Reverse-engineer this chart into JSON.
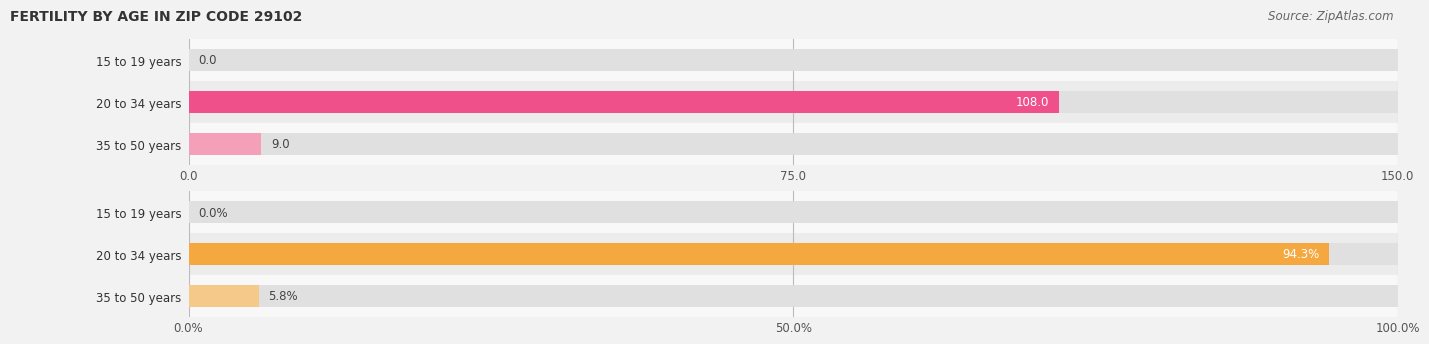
{
  "title": "FERTILITY BY AGE IN ZIP CODE 29102",
  "source": "Source: ZipAtlas.com",
  "chart1": {
    "categories": [
      "15 to 19 years",
      "20 to 34 years",
      "35 to 50 years"
    ],
    "values": [
      0.0,
      108.0,
      9.0
    ],
    "xlim": [
      0,
      150
    ],
    "xticks": [
      0.0,
      75.0,
      150.0
    ],
    "xtick_labels": [
      "0.0",
      "75.0",
      "150.0"
    ],
    "bar_colors": [
      "#f4a0b8",
      "#f0508a",
      "#f4a0b8"
    ],
    "label_colors": [
      "#555555",
      "#ffffff",
      "#555555"
    ],
    "bg_color": "#f0f0f0",
    "bar_bg_color": "#e0e0e0"
  },
  "chart2": {
    "categories": [
      "15 to 19 years",
      "20 to 34 years",
      "35 to 50 years"
    ],
    "values": [
      0.0,
      94.3,
      5.8
    ],
    "xlim": [
      0,
      100
    ],
    "xticks": [
      0.0,
      50.0,
      100.0
    ],
    "xtick_labels": [
      "0.0%",
      "50.0%",
      "100.0%"
    ],
    "bar_colors": [
      "#f5c98a",
      "#f5a840",
      "#f5c98a"
    ],
    "label_colors": [
      "#555555",
      "#ffffff",
      "#555555"
    ],
    "bg_color": "#f0f0f0",
    "bar_bg_color": "#e0e0e0"
  },
  "title_fontsize": 10,
  "source_fontsize": 8.5,
  "label_fontsize": 8.5,
  "tick_fontsize": 8.5,
  "cat_fontsize": 8.5,
  "bar_height": 0.52,
  "row_bgs": [
    "#f8f8f8",
    "#ececec",
    "#f8f8f8"
  ]
}
